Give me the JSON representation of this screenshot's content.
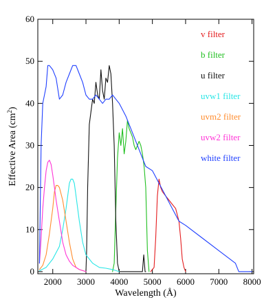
{
  "chart_data": {
    "type": "line",
    "title": "",
    "xlabel": "Wavelength (Å)",
    "ylabel_main": "Effective Area (cm",
    "ylabel_sup": "2",
    "ylabel_close": ")",
    "xlim": [
      1550,
      8050
    ],
    "ylim": [
      -0.5,
      60
    ],
    "xticks": [
      2000,
      3000,
      4000,
      5000,
      6000,
      7000,
      8000
    ],
    "yticks": [
      0,
      10,
      20,
      30,
      40,
      50,
      60
    ],
    "grid": false,
    "legend_position": "top-right",
    "series": [
      {
        "name": "v filter",
        "color": "#e41a1c",
        "x": [
          4950,
          5050,
          5100,
          5150,
          5200,
          5250,
          5300,
          5350,
          5400,
          5500,
          5600,
          5700,
          5800,
          5850,
          5900,
          5950,
          6000
        ],
        "y": [
          0,
          1,
          8,
          18,
          22,
          20,
          19,
          18.5,
          18,
          17,
          16,
          15,
          12,
          8,
          3,
          1,
          0
        ]
      },
      {
        "name": "b filter",
        "color": "#1fbf1f",
        "x": [
          3800,
          3850,
          3900,
          3950,
          4000,
          4050,
          4100,
          4150,
          4200,
          4250,
          4300,
          4350,
          4400,
          4450,
          4500,
          4550,
          4600,
          4650,
          4700,
          4750,
          4800,
          4850,
          4900
        ],
        "y": [
          0,
          2,
          15,
          27,
          33,
          30,
          34,
          28,
          31,
          36,
          34,
          33,
          32,
          30,
          29,
          30,
          31,
          30,
          28,
          25,
          20,
          5,
          0
        ]
      },
      {
        "name": "u filter",
        "color": "#111111",
        "x": [
          3000,
          3020,
          3050,
          3100,
          3150,
          3200,
          3250,
          3300,
          3350,
          3400,
          3450,
          3500,
          3550,
          3600,
          3650,
          3700,
          3750,
          3800,
          3850,
          3900,
          3950,
          4000,
          4700,
          4720,
          4740,
          4760,
          4780,
          4800
        ],
        "y": [
          0,
          5,
          20,
          35,
          38,
          41,
          40,
          45,
          42,
          41,
          48,
          43,
          41,
          46,
          45,
          49,
          47,
          40,
          30,
          12,
          2,
          0,
          0,
          2,
          4,
          2,
          0,
          0
        ]
      },
      {
        "name": "uvw1 filter",
        "color": "#27e6e6",
        "x": [
          1600,
          1800,
          2000,
          2200,
          2300,
          2400,
          2500,
          2550,
          2600,
          2650,
          2700,
          2800,
          2900,
          3000,
          3200,
          3400,
          3600,
          3800,
          4000
        ],
        "y": [
          0.2,
          1,
          3,
          6,
          10,
          15,
          21,
          22,
          22,
          21,
          18,
          12,
          7,
          4,
          2,
          1,
          0.8,
          0.5,
          0
        ]
      },
      {
        "name": "uvm2 filter",
        "color": "#ff8c2e",
        "x": [
          1600,
          1700,
          1800,
          1900,
          2000,
          2050,
          2100,
          2150,
          2200,
          2300,
          2400,
          2500,
          2600,
          2700,
          2800,
          3000
        ],
        "y": [
          0.5,
          1.5,
          4,
          9,
          15,
          19,
          20.5,
          20.5,
          20,
          17,
          12,
          7,
          3,
          1,
          0.5,
          0
        ]
      },
      {
        "name": "uvw2 filter",
        "color": "#ff33d6",
        "x": [
          1600,
          1650,
          1700,
          1750,
          1800,
          1850,
          1900,
          1950,
          2000,
          2050,
          2100,
          2200,
          2300,
          2400,
          2500,
          2600,
          2800,
          3000
        ],
        "y": [
          2,
          8,
          15,
          20,
          24,
          26,
          26.5,
          25.5,
          23,
          20,
          17,
          12,
          7,
          4,
          2.5,
          1.5,
          0.5,
          0
        ]
      },
      {
        "name": "white filter",
        "color": "#1f3fff",
        "x": [
          1600,
          1650,
          1700,
          1800,
          1850,
          1900,
          2000,
          2100,
          2200,
          2300,
          2400,
          2500,
          2600,
          2700,
          2800,
          2900,
          3000,
          3100,
          3200,
          3300,
          3400,
          3500,
          3600,
          3700,
          3800,
          3900,
          4000,
          4200,
          4400,
          4600,
          4800,
          5000,
          5200,
          5400,
          5600,
          5800,
          6000,
          6500,
          7000,
          7500,
          7600,
          8000
        ],
        "y": [
          2,
          30,
          40,
          44,
          49,
          49,
          48,
          46,
          41,
          42,
          45,
          47,
          49,
          49,
          47,
          45,
          42,
          41,
          41,
          42,
          41,
          40,
          41,
          41,
          42,
          41,
          40,
          37,
          33,
          29,
          25,
          24,
          21,
          18,
          15,
          12,
          11,
          8,
          5,
          2,
          0,
          0
        ]
      }
    ]
  }
}
